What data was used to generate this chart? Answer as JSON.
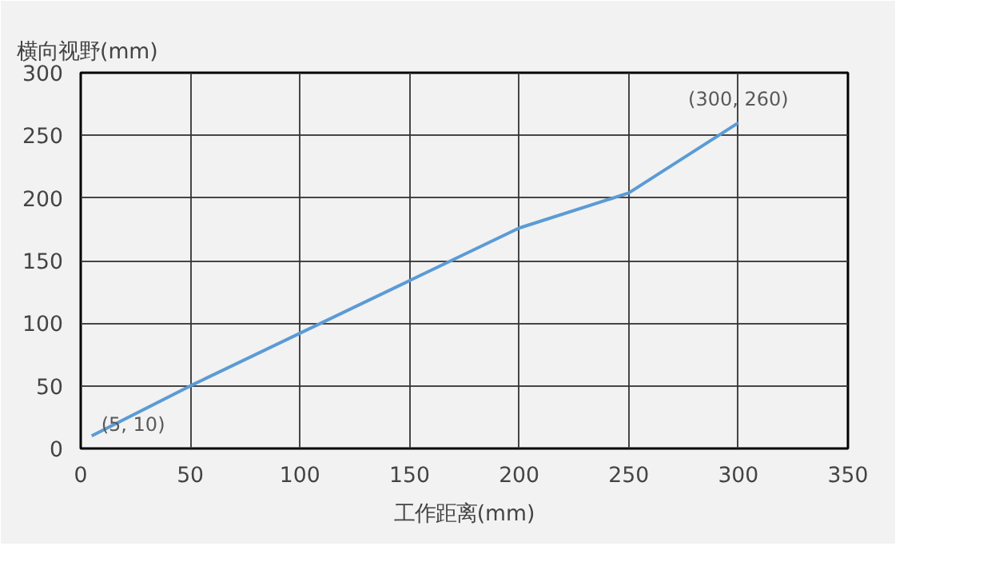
{
  "chart_data": {
    "type": "line",
    "xlabel": "工作距离(mm)",
    "ylabel": "横向视野(mm)",
    "x": [
      5,
      50,
      150,
      200,
      250,
      300
    ],
    "series": [
      {
        "color": "#5b9bd5",
        "values": [
          10,
          50,
          134,
          176,
          204,
          260
        ]
      }
    ],
    "xlim": [
      0,
      350
    ],
    "ylim": [
      0,
      300
    ],
    "xticks": [
      0,
      50,
      100,
      150,
      200,
      250,
      300,
      350
    ],
    "yticks": [
      0,
      50,
      100,
      150,
      200,
      250,
      300
    ],
    "grid": true,
    "marker": "none",
    "line_style": "solid",
    "annotations": [
      {
        "text": "(5, 10)",
        "x": 5,
        "y": 10
      },
      {
        "text": "(300, 260)",
        "x": 300,
        "y": 260
      }
    ]
  }
}
